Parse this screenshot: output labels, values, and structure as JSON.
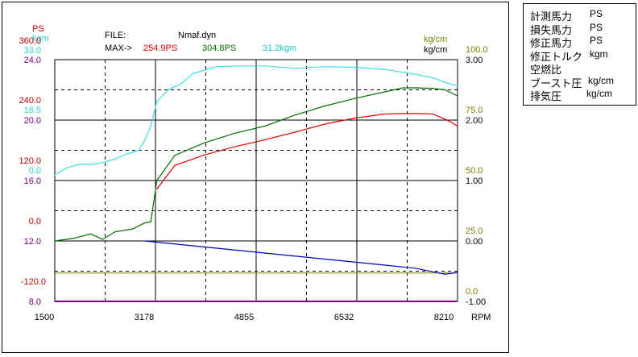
{
  "header": {
    "file_label": "FILE:",
    "file_name": "Nmaf.dyn",
    "max_label": "MAX->",
    "max_ps": "254.9PS",
    "max_ps2": "304.8PS",
    "max_kgm": "31.2kgm"
  },
  "left_axis": {
    "ps_title": "PS",
    "kgm_title": "kgm",
    "ps_ticks": [
      "360.0",
      "240.0",
      "120.0",
      "0.0",
      "-120.0"
    ],
    "kgm_ticks": [
      "33.0",
      "16.5",
      "0.0"
    ],
    "afr_ticks": [
      "24.0",
      "20.0",
      "16.0",
      "12.0",
      "8.0"
    ]
  },
  "right_axis": {
    "title_olive": "kg/cm",
    "title_black": "kg/cm",
    "olive_ticks": [
      "100.0",
      "75.0",
      "50.0",
      "25.0",
      "0.0"
    ],
    "black_ticks": [
      "3.00",
      "2.00",
      "1.00",
      "0.00",
      "-1.00"
    ]
  },
  "x_axis": {
    "ticks": [
      "1500",
      "3178",
      "4855",
      "6532",
      "8210"
    ],
    "unit": "RPM"
  },
  "legend": [
    {
      "name": "計測馬力",
      "unit": "PS"
    },
    {
      "name": "損失馬力",
      "unit": "PS"
    },
    {
      "name": "修正馬力",
      "unit": "PS"
    },
    {
      "name": "修正トルク",
      "unit": "kgm"
    },
    {
      "name": "空燃比",
      "unit": ""
    },
    {
      "name": "ブースト圧",
      "unit": "kg/cm"
    },
    {
      "name": "排気圧",
      "unit": "kg/cm"
    }
  ],
  "colors": {
    "measured_ps": "#e00000",
    "corrected_ps": "#007000",
    "torque": "#40e0e0",
    "afr": "#800080",
    "boost": "#0000c0",
    "olive": "#808000",
    "ps_axis": "#c00000",
    "kgm_axis": "#40d0d0"
  },
  "chart_data": {
    "type": "line",
    "x_label": "RPM",
    "xlim": [
      1500,
      8210
    ],
    "x_ticks": [
      1500,
      3178,
      4855,
      6532,
      8210
    ],
    "ylim_ps": [
      -180,
      360
    ],
    "series": [
      {
        "name": "計測馬力",
        "unit": "PS",
        "color_key": "measured_ps",
        "x": [
          3200,
          3500,
          4000,
          4500,
          5000,
          5500,
          6000,
          6500,
          7000,
          7300,
          7500,
          7800,
          8000,
          8100,
          8210
        ],
        "values": [
          103,
          150,
          171,
          187,
          201,
          216,
          232,
          244,
          252,
          253,
          253,
          252,
          242,
          236,
          228
        ]
      },
      {
        "name": "修正馬力",
        "unit": "PS",
        "color_key": "corrected_ps",
        "x": [
          1500,
          1800,
          2100,
          2300,
          2500,
          2800,
          3000,
          3100,
          3200,
          3500,
          4000,
          4500,
          5000,
          5500,
          6000,
          6500,
          7000,
          7300,
          7500,
          7800,
          8000,
          8210
        ],
        "values": [
          0,
          5,
          14,
          3,
          18,
          24,
          36,
          38,
          120,
          170,
          195,
          214,
          228,
          250,
          268,
          283,
          296,
          304,
          304,
          303,
          300,
          288
        ]
      },
      {
        "name": "修正トルク",
        "unit": "kgm",
        "color_key": "torque",
        "x": [
          1500,
          1700,
          1900,
          2100,
          2300,
          2500,
          2700,
          2900,
          3000,
          3100,
          3200,
          3400,
          3600,
          3800,
          4200,
          4600,
          5000,
          5500,
          6000,
          6500,
          7000,
          7500,
          7800,
          8000,
          8210
        ],
        "values": [
          0.0,
          2.0,
          3.0,
          3.0,
          3.5,
          4.5,
          6.0,
          7.0,
          10.0,
          14.0,
          21.0,
          24.5,
          26.0,
          29.0,
          31.0,
          31.2,
          31.2,
          30.5,
          31.0,
          30.8,
          30.2,
          28.8,
          27.8,
          26.5,
          25.5
        ]
      },
      {
        "name": "ブースト圧",
        "unit": "kg/cm",
        "color_key": "boost",
        "x": [
          3000,
          4000,
          5000,
          6000,
          7000,
          7500,
          8000,
          8210
        ],
        "values": [
          0.0,
          -0.1,
          -0.2,
          -0.3,
          -0.4,
          -0.45,
          -0.55,
          -0.52
        ]
      },
      {
        "name": "空燃比",
        "unit": "",
        "color_key": "afr",
        "x": [
          1500,
          8210
        ],
        "values": [
          8.0,
          8.0
        ]
      }
    ]
  }
}
